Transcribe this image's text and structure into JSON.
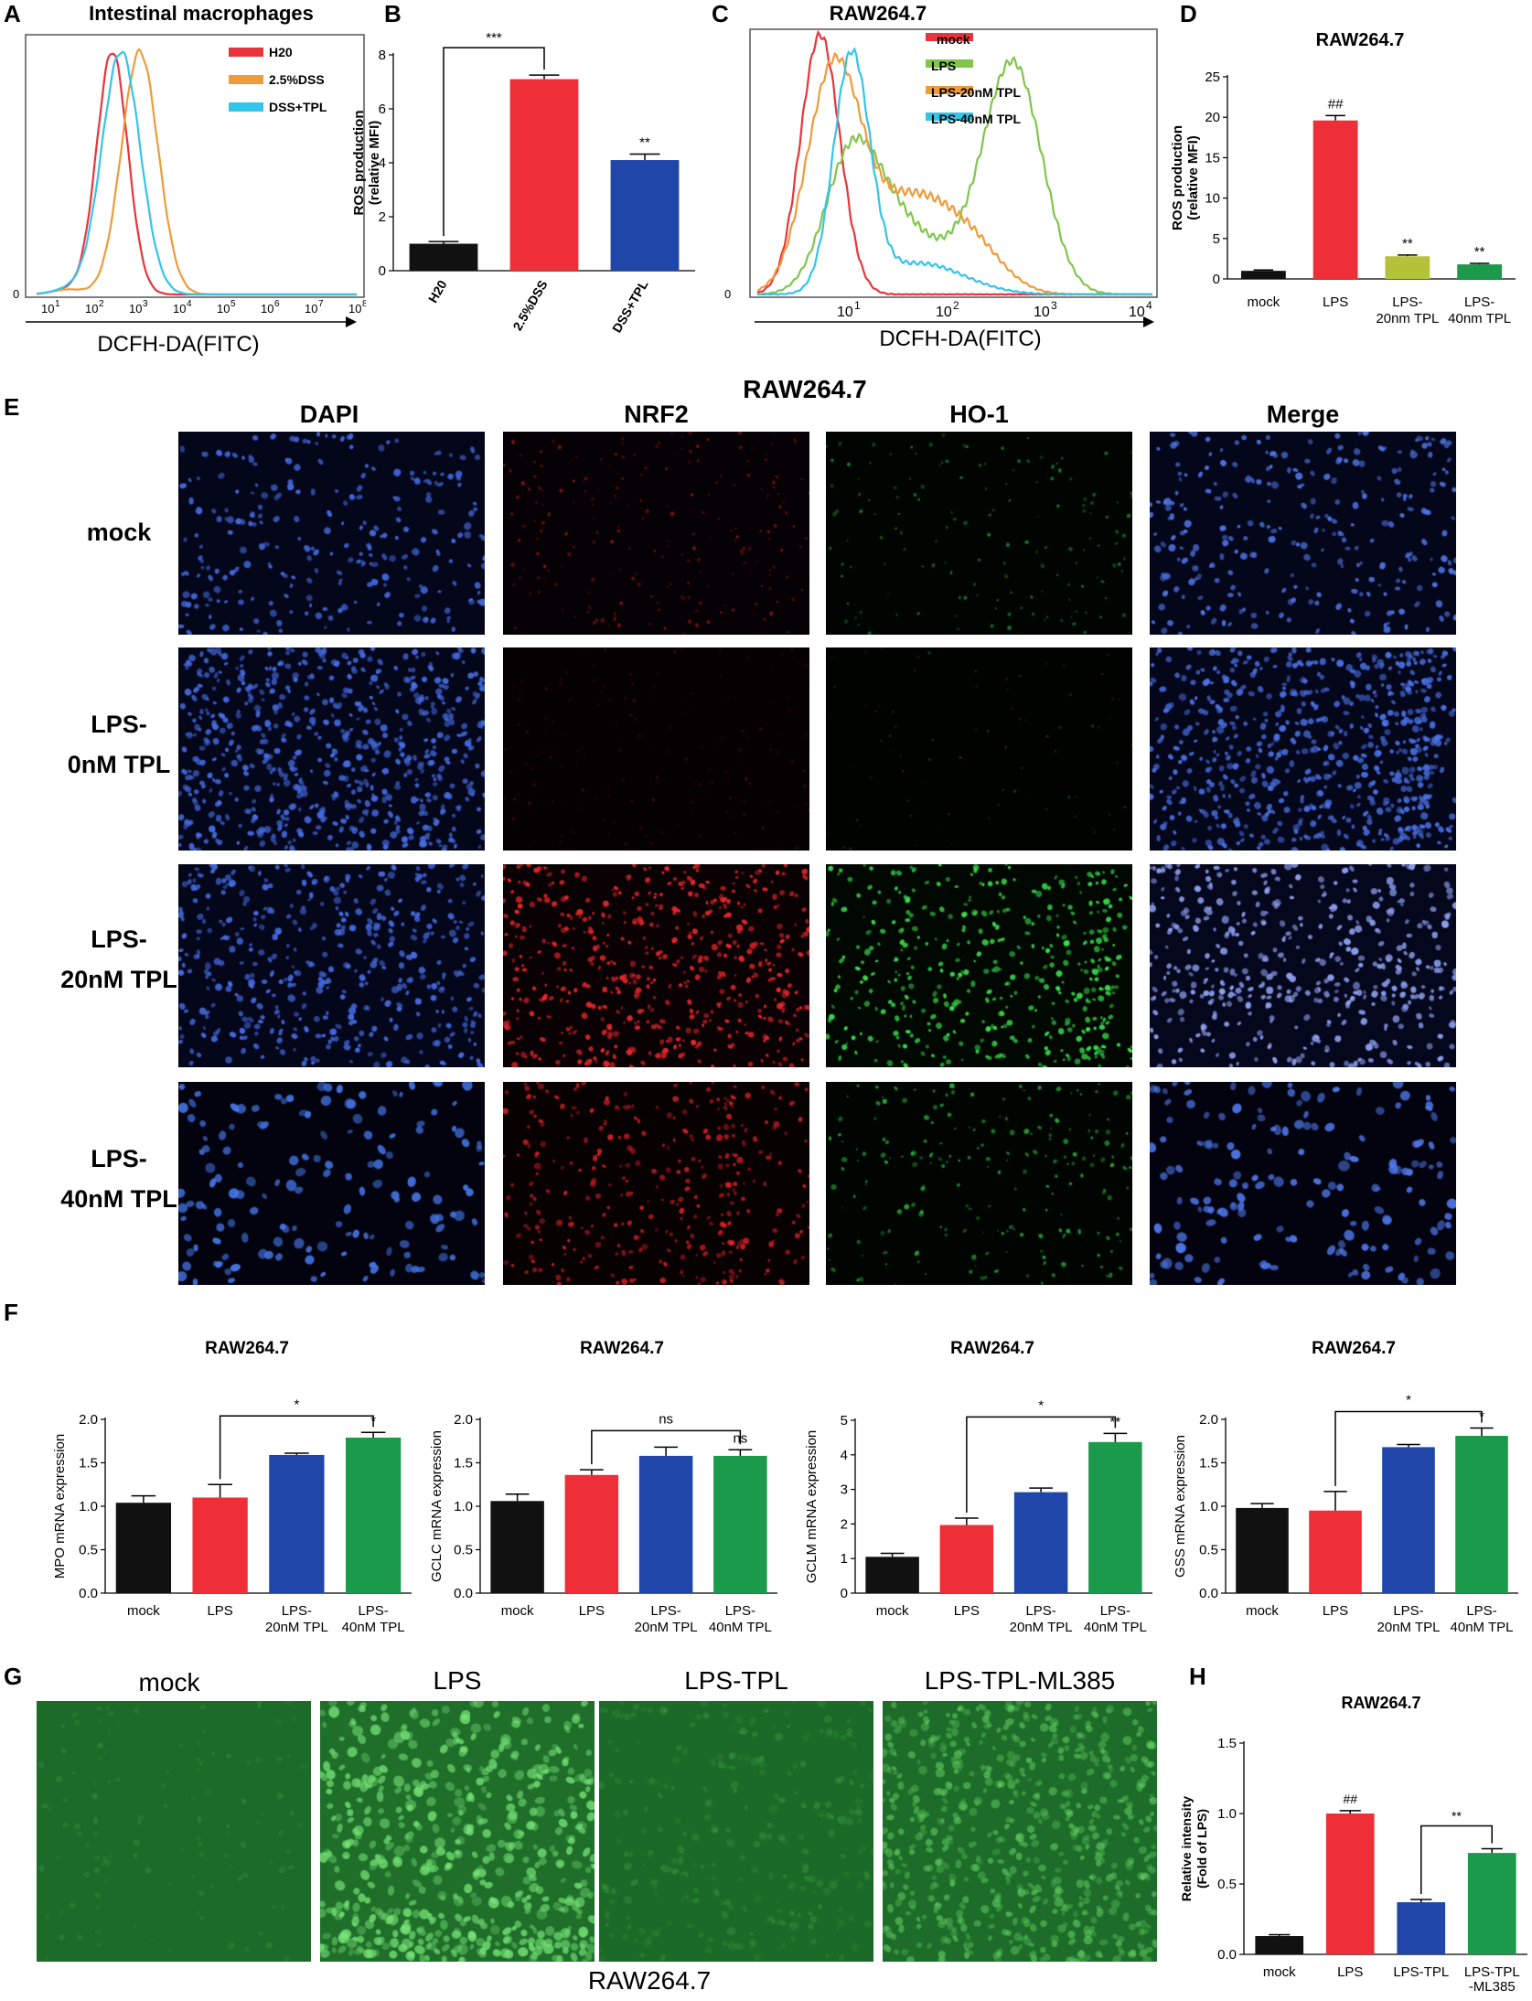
{
  "panel_labels": [
    "A",
    "B",
    "C",
    "D",
    "E",
    "F",
    "G",
    "H"
  ],
  "chart_data": [
    {
      "id": "A",
      "type": "line",
      "title": "Intestinal macrophages",
      "xlabel": "DCFH-DA(FITC)",
      "x_scale": "log",
      "xlim": [
        10,
        1000000
      ],
      "x_ticks": [
        "10^1",
        "10^2",
        "10^3",
        "10^4",
        "10^5",
        "10^6",
        "10^7",
        "10^8"
      ],
      "y_tick": "0",
      "legend_position": "top-right",
      "series": [
        {
          "name": "H20",
          "color": "#e8343a",
          "peak_x": 450,
          "spread": 0.34
        },
        {
          "name": "2.5%DSS",
          "color": "#f09a3a",
          "peak_x": 1800,
          "spread": 0.4
        },
        {
          "name": "DSS+TPL",
          "color": "#34c4e8",
          "peak_x": 700,
          "spread": 0.42
        }
      ]
    },
    {
      "id": "B",
      "type": "bar",
      "categories": [
        "H20",
        "2.5%DSS",
        "DSS+TPL"
      ],
      "values": [
        1.0,
        7.1,
        4.1
      ],
      "errors": [
        0.08,
        0.15,
        0.22
      ],
      "colors": [
        "#111111",
        "#ee2f37",
        "#1f46a8"
      ],
      "ylabel": "ROS production\n(relative MFI)",
      "ylim": [
        0,
        8
      ],
      "yticks": [
        0,
        2,
        4,
        6,
        8
      ],
      "annotations": [
        {
          "text": "***",
          "type": "bracket",
          "from": 0,
          "to": 1
        },
        {
          "text": "**",
          "type": "star",
          "at": 2
        }
      ]
    },
    {
      "id": "C",
      "type": "line",
      "title": "RAW264.7",
      "xlabel": "DCFH-DA(FITC)",
      "x_scale": "log",
      "xlim": [
        1,
        10000
      ],
      "x_ticks": [
        "10^1",
        "10^2",
        "10^3",
        "10^4"
      ],
      "y_tick": "0",
      "legend_position": "top-right",
      "series": [
        {
          "name": "mock",
          "color": "#e8343a"
        },
        {
          "name": "LPS",
          "color": "#7fc64a"
        },
        {
          "name": "LPS-20nM TPL",
          "color": "#f09a3a"
        },
        {
          "name": "LPS-40nM TPL",
          "color": "#34c4e8"
        }
      ]
    },
    {
      "id": "D",
      "type": "bar",
      "title": "RAW264.7",
      "categories": [
        "mock",
        "LPS",
        "LPS-\n20nm TPL",
        "LPS-\n40nm TPL"
      ],
      "values": [
        1.0,
        19.6,
        2.8,
        1.8
      ],
      "errors": [
        0.1,
        0.6,
        0.15,
        0.12
      ],
      "colors": [
        "#111111",
        "#ee2f37",
        "#b4c23a",
        "#1a9a4a"
      ],
      "ylabel": "ROS production\n(relative MFI)",
      "ylim": [
        0,
        25
      ],
      "yticks": [
        0,
        5,
        10,
        15,
        20,
        25
      ],
      "annotations": [
        {
          "text": "##",
          "type": "star",
          "at": 1
        },
        {
          "text": "**",
          "type": "star",
          "at": 2
        },
        {
          "text": "**",
          "type": "star",
          "at": 3
        }
      ]
    },
    {
      "id": "F1",
      "type": "bar",
      "title": "RAW264.7",
      "categories": [
        "mock",
        "LPS",
        "LPS-\n20nM TPL",
        "LPS-\n40nM TPL"
      ],
      "values": [
        1.04,
        1.1,
        1.59,
        1.79
      ],
      "errors": [
        0.08,
        0.15,
        0.02,
        0.06
      ],
      "colors": [
        "#111111",
        "#ee2f37",
        "#1f46a8",
        "#1a9a4a"
      ],
      "ylabel": "MPO mRNA expression",
      "ylim": [
        0,
        2.0
      ],
      "yticks": [
        0.0,
        0.5,
        1.0,
        1.5,
        2.0
      ],
      "annotations": [
        {
          "text": "*",
          "type": "bracket_from",
          "from": 1,
          "to": [
            2,
            3
          ]
        },
        {
          "text": "*",
          "type": "star",
          "at": 3
        }
      ]
    },
    {
      "id": "F2",
      "type": "bar",
      "title": "RAW264.7",
      "categories": [
        "mock",
        "LPS",
        "LPS-\n20nM TPL",
        "LPS-\n40nM TPL"
      ],
      "values": [
        1.06,
        1.36,
        1.58,
        1.58
      ],
      "errors": [
        0.08,
        0.06,
        0.1,
        0.07
      ],
      "colors": [
        "#111111",
        "#ee2f37",
        "#1f46a8",
        "#1a9a4a"
      ],
      "ylabel": "GCLC mRNA expression",
      "ylim": [
        0,
        2.0
      ],
      "yticks": [
        0.0,
        0.5,
        1.0,
        1.5,
        2.0
      ],
      "annotations": [
        {
          "text": "ns",
          "type": "bracket_from",
          "from": 1,
          "to": [
            2,
            3
          ]
        },
        {
          "text": "ns",
          "type": "star",
          "at": 3
        }
      ]
    },
    {
      "id": "F3",
      "type": "bar",
      "title": "RAW264.7",
      "categories": [
        "mock",
        "LPS",
        "LPS-\n20nM TPL",
        "LPS-\n40nM TPL"
      ],
      "values": [
        1.05,
        1.97,
        2.92,
        4.37
      ],
      "errors": [
        0.1,
        0.2,
        0.12,
        0.25
      ],
      "colors": [
        "#111111",
        "#ee2f37",
        "#1f46a8",
        "#1a9a4a"
      ],
      "ylabel": "GCLM mRNA expression",
      "ylim": [
        0,
        5
      ],
      "yticks": [
        0,
        1,
        2,
        3,
        4,
        5
      ],
      "annotations": [
        {
          "text": "*",
          "type": "bracket_from",
          "from": 1,
          "to": [
            2,
            3
          ]
        },
        {
          "text": "**",
          "type": "star",
          "at": 3
        }
      ]
    },
    {
      "id": "F4",
      "type": "bar",
      "title": "RAW264.7",
      "categories": [
        "mock",
        "LPS",
        "LPS-\n20nM TPL",
        "LPS-\n40nM TPL"
      ],
      "values": [
        0.98,
        0.95,
        1.68,
        1.81
      ],
      "errors": [
        0.05,
        0.22,
        0.03,
        0.09
      ],
      "colors": [
        "#111111",
        "#ee2f37",
        "#1f46a8",
        "#1a9a4a"
      ],
      "ylabel": "GSS mRNA expression",
      "ylim": [
        0,
        2.0
      ],
      "yticks": [
        0.0,
        0.5,
        1.0,
        1.5,
        2.0
      ],
      "annotations": [
        {
          "text": "*",
          "type": "bracket_from",
          "from": 1,
          "to": [
            2,
            3
          ]
        },
        {
          "text": "*",
          "type": "star",
          "at": 3
        }
      ]
    },
    {
      "id": "H",
      "type": "bar",
      "title": "RAW264.7",
      "categories": [
        "mock",
        "LPS",
        "LPS-TPL",
        "LPS-TPL\n-ML385"
      ],
      "values": [
        0.13,
        1.0,
        0.37,
        0.72
      ],
      "errors": [
        0.01,
        0.02,
        0.02,
        0.03
      ],
      "colors": [
        "#111111",
        "#ee2f37",
        "#1f46a8",
        "#1a9a4a"
      ],
      "ylabel": "Relative intensity\n(Fold of LPS)",
      "ylim": [
        0,
        1.5
      ],
      "yticks": [
        0.0,
        0.5,
        1.0,
        1.5
      ],
      "annotations": [
        {
          "text": "##",
          "type": "star",
          "at": 1
        },
        {
          "text": "**",
          "type": "bracket",
          "from": 2,
          "to": 3
        }
      ]
    }
  ],
  "panel_e": {
    "title": "RAW264.7",
    "columns": [
      "DAPI",
      "NRF2",
      "HO-1",
      "Merge"
    ],
    "rows": [
      "mock",
      "LPS-\n0nM TPL",
      "LPS-\n20nM TPL",
      "LPS-\n40nM TPL"
    ]
  },
  "panel_g": {
    "columns": [
      "mock",
      "LPS",
      "LPS-TPL",
      "LPS-TPL-ML385"
    ],
    "caption": "RAW264.7"
  }
}
